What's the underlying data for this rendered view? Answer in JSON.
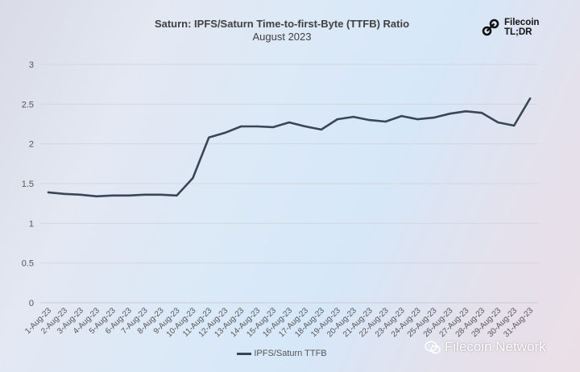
{
  "header": {
    "brand_name_line1": "Filecoin",
    "brand_name_line2": "TL;DR"
  },
  "watermark": {
    "text": "Filecoin Network",
    "icon": "wechat-icon"
  },
  "chart_data": {
    "type": "line",
    "title": "Saturn: IPFS/Saturn Time-to-first-Byte (TTFB) Ratio",
    "subtitle": "August 2023",
    "xlabel": "",
    "ylabel": "",
    "ylim": [
      0,
      3
    ],
    "yticks": [
      "0",
      "0.5",
      "1",
      "1.5",
      "2",
      "2.5",
      "3"
    ],
    "grid": true,
    "legend_position": "bottom",
    "categories": [
      "1-Aug-23",
      "2-Aug-23",
      "3-Aug-23",
      "4-Aug-23",
      "5-Aug-23",
      "6-Aug-23",
      "7-Aug-23",
      "8-Aug-23",
      "9-Aug-23",
      "10-Aug-23",
      "11-Aug-23",
      "12-Aug-23",
      "13-Aug-23",
      "14-Aug-23",
      "15-Aug-23",
      "16-Aug-23",
      "17-Aug-23",
      "18-Aug-23",
      "19-Aug-23",
      "20-Aug-23",
      "21-Aug-23",
      "22-Aug-23",
      "23-Aug-23",
      "24-Aug-23",
      "25-Aug-23",
      "26-Aug-23",
      "27-Aug-23",
      "28-Aug-23",
      "29-Aug-23",
      "30-Aug-23",
      "31-Aug-23"
    ],
    "series": [
      {
        "name": "IPFS/Saturn TTFB",
        "color": "#3a4656",
        "values": [
          1.39,
          1.37,
          1.36,
          1.34,
          1.35,
          1.35,
          1.36,
          1.36,
          1.35,
          1.57,
          2.08,
          2.14,
          2.22,
          2.22,
          2.21,
          2.27,
          2.22,
          2.18,
          2.31,
          2.34,
          2.3,
          2.28,
          2.35,
          2.31,
          2.33,
          2.38,
          2.41,
          2.39,
          2.27,
          2.23,
          2.57
        ]
      }
    ]
  }
}
